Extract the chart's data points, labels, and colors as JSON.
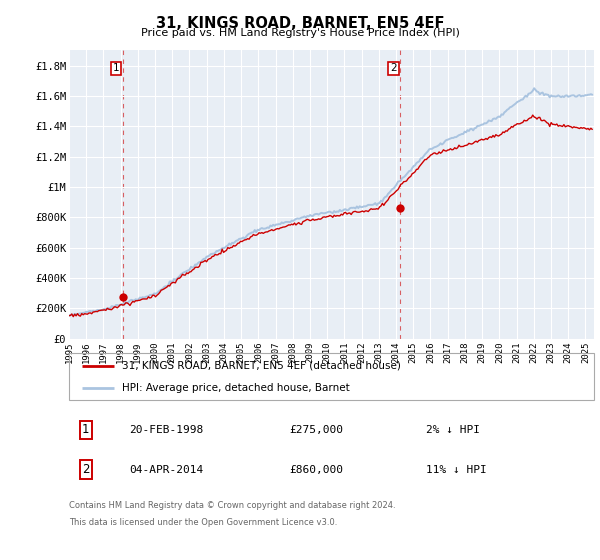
{
  "title": "31, KINGS ROAD, BARNET, EN5 4EF",
  "subtitle": "Price paid vs. HM Land Registry's House Price Index (HPI)",
  "ylabel_ticks": [
    "£0",
    "£200K",
    "£400K",
    "£600K",
    "£800K",
    "£1M",
    "£1.2M",
    "£1.4M",
    "£1.6M",
    "£1.8M"
  ],
  "ytick_vals": [
    0,
    200000,
    400000,
    600000,
    800000,
    1000000,
    1200000,
    1400000,
    1600000,
    1800000
  ],
  "ylim": [
    0,
    1900000
  ],
  "xlim_start": 1995.0,
  "xlim_end": 2025.5,
  "xtick_years": [
    1995,
    1996,
    1997,
    1998,
    1999,
    2000,
    2001,
    2002,
    2003,
    2004,
    2005,
    2006,
    2007,
    2008,
    2009,
    2010,
    2011,
    2012,
    2013,
    2014,
    2015,
    2016,
    2017,
    2018,
    2019,
    2020,
    2021,
    2022,
    2023,
    2024,
    2025
  ],
  "hpi_color": "#aac4e0",
  "price_color": "#cc0000",
  "purchase1_x": 1998.13,
  "purchase1_y": 275000,
  "purchase2_x": 2014.25,
  "purchase2_y": 860000,
  "dashed_line_color": "#cc0000",
  "legend_price_label": "31, KINGS ROAD, BARNET, EN5 4EF (detached house)",
  "legend_hpi_label": "HPI: Average price, detached house, Barnet",
  "annotation1_date": "20-FEB-1998",
  "annotation1_price": "£275,000",
  "annotation1_change": "2% ↓ HPI",
  "annotation2_date": "04-APR-2014",
  "annotation2_price": "£860,000",
  "annotation2_change": "11% ↓ HPI",
  "footer": "Contains HM Land Registry data © Crown copyright and database right 2024.\nThis data is licensed under the Open Government Licence v3.0.",
  "bg_color": "#e8eef5",
  "n_points": 370,
  "seed": 17
}
